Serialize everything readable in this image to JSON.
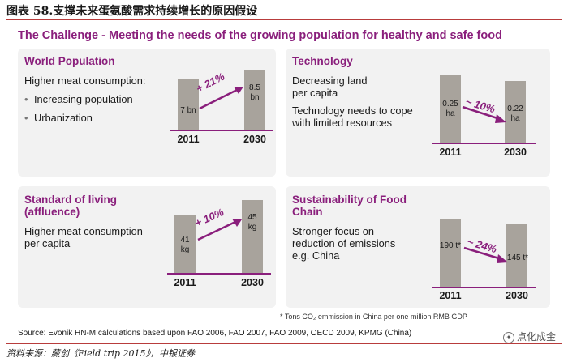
{
  "figure_title": "图表 58.支撑未来蛋氨酸需求持续增长的原因假设",
  "headline": "The Challenge - Meeting the needs of the growing population for healthy and safe food",
  "panels": {
    "world_population": {
      "title": "World Population",
      "lead": "Higher meat consumption:",
      "bullets": [
        "Increasing population",
        "Urbanization"
      ],
      "bar_2011": "7 bn",
      "bar_2030_a": "8.5",
      "bar_2030_b": "bn",
      "change": "+ 21%",
      "year_a": "2011",
      "year_b": "2030"
    },
    "technology": {
      "title": "Technology",
      "line1": "Decreasing land",
      "line2": "per capita",
      "line3": "Technology needs to cope",
      "line4": "with limited resources",
      "bar_2011_a": "0.25",
      "bar_2011_b": "ha",
      "bar_2030_a": "0.22",
      "bar_2030_b": "ha",
      "change": "~ 10%",
      "year_a": "2011",
      "year_b": "2030"
    },
    "standard_of_living": {
      "title_line1": "Standard of living",
      "title_line2": "(affluence)",
      "line1": "Higher meat consumption",
      "line2": "per capita",
      "bar_2011_a": "41",
      "bar_2011_b": "kg",
      "bar_2030_a": "45",
      "bar_2030_b": "kg",
      "change": "+ 10%",
      "year_a": "2011",
      "year_b": "2030"
    },
    "sustainability": {
      "title_line1": "Sustainability of Food",
      "title_line2": "Chain",
      "line1": "Stronger focus on",
      "line2": "reduction of emissions",
      "line3": "e.g. China",
      "bar_2011": "190 t*",
      "bar_2030": "145 t*",
      "change": "~ 24%",
      "year_a": "2011",
      "year_b": "2030"
    }
  },
  "footnote": "* Tons CO₂ emmission in China per one million RMB GDP",
  "source": "Source: Evonik HN-M calculations based upon FAO 2006, FAO 2007, FAO 2009, OECD 2009, KPMG (China)",
  "data_source": "资料来源：藏创《Field trip 2015》，中银证券",
  "watermark": "点化成金",
  "colors": {
    "accent": "#8a1f7c",
    "bar": "#a8a39c",
    "panel": "#f2f2f2",
    "rule": "#b83c3c"
  }
}
